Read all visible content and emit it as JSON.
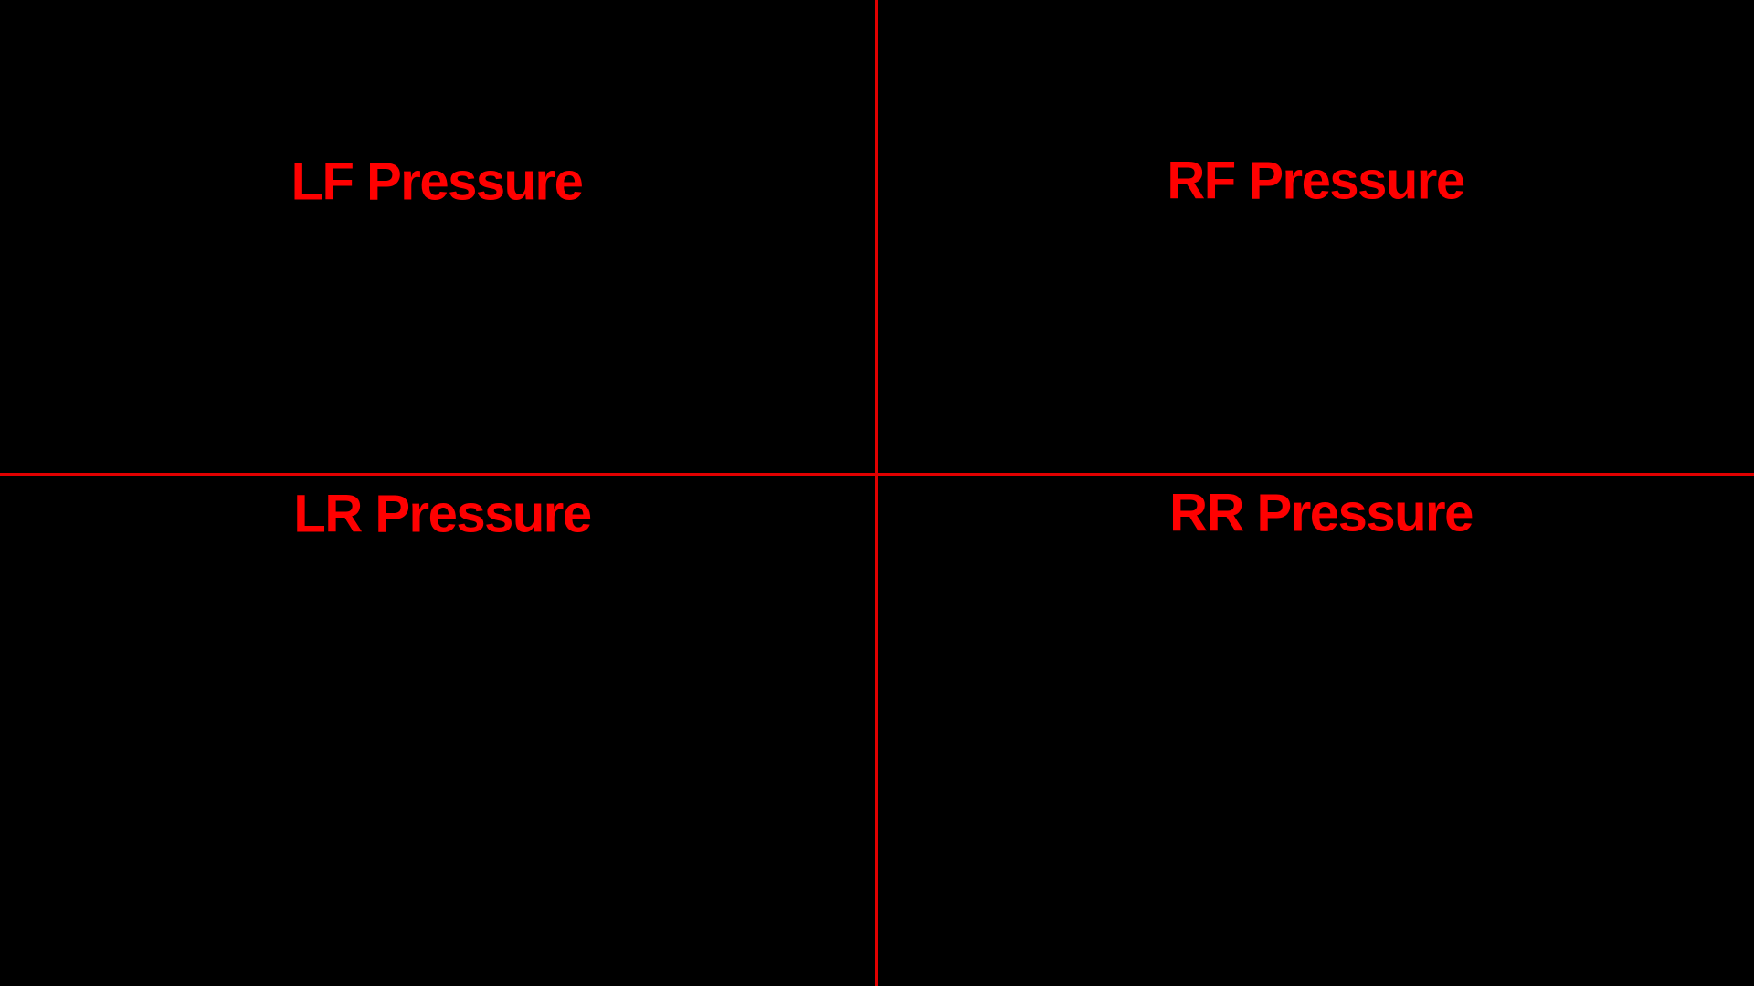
{
  "colors": {
    "background": "#000000",
    "accent": "#ff0000",
    "divider": "#e00000"
  },
  "panels": [
    {
      "label": "LF Pressure"
    },
    {
      "label": "RF Pressure"
    },
    {
      "label": "LR Pressure"
    },
    {
      "label": "RR Pressure"
    }
  ]
}
